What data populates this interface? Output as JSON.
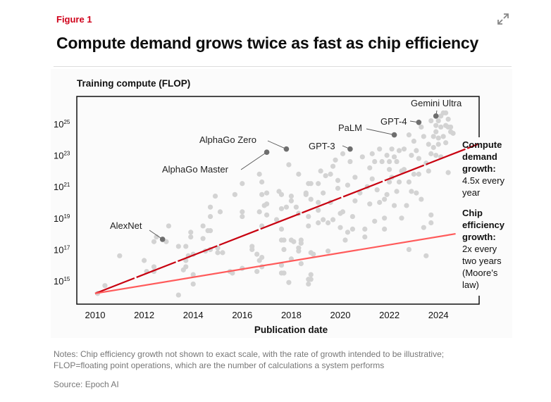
{
  "figure_label": "Figure 1",
  "title": "Compute demand grows twice as fast as chip efficiency",
  "icons": {
    "expand": "expand-icon"
  },
  "notes": [
    "Notes: Chip efficiency growth not shown to exact scale, with the rate of growth intended to be illustrative;",
    "FLOP=floating point operations, which are the number of calculations a system performs"
  ],
  "source": "Source: Epoch AI",
  "chart_data": {
    "type": "scatter",
    "title": "Compute demand grows twice as fast as chip efficiency",
    "ylabel": "Training compute (FLOP)",
    "xlabel": "Publication date",
    "xlim": [
      2009.6,
      2026.1
    ],
    "ylim_log10": [
      13.5,
      26.7
    ],
    "y_scale": "log",
    "x_ticks": [
      "2010",
      "2012",
      "2014",
      "2016",
      "2018",
      "2020",
      "2022",
      "2024"
    ],
    "x_tick_values": [
      2010,
      2012,
      2014,
      2016,
      2018,
      2020,
      2022,
      2024
    ],
    "y_ticks": [
      {
        "base": "10",
        "exp": "15",
        "value": 15
      },
      {
        "base": "10",
        "exp": "17",
        "value": 17
      },
      {
        "base": "10",
        "exp": "19",
        "value": 19
      },
      {
        "base": "10",
        "exp": "21",
        "value": 21
      },
      {
        "base": "10",
        "exp": "23",
        "value": 23
      },
      {
        "base": "10",
        "exp": "25",
        "value": 25
      }
    ],
    "colors": {
      "points": "#d3d3d3",
      "highlight": "#6e6e6e",
      "compute_line": "#c8000f",
      "chip_line": "#ff5a5a",
      "axis": "#111111"
    },
    "trend_lines": [
      {
        "name": "compute-demand",
        "label": [
          "Compute",
          "demand",
          "growth:"
        ],
        "sublabel": [
          "4.5x every",
          "year"
        ],
        "from": [
          2010,
          14.2
        ],
        "to": [
          2025.6,
          23.7
        ],
        "dashed": true
      },
      {
        "name": "chip-efficiency",
        "label": [
          "Chip",
          "efficiency",
          "growth:"
        ],
        "sublabel": [
          "2x every",
          "two years",
          "(Moore’s",
          "law)"
        ],
        "from": [
          2010,
          14.2
        ],
        "to": [
          2024.7,
          18.0
        ],
        "dashed": false
      }
    ],
    "highlighted": [
      {
        "name": "AlexNet",
        "x": 2012.75,
        "y": 17.65
      },
      {
        "name": "AlphaGo Master",
        "x": 2017.0,
        "y": 23.2
      },
      {
        "name": "AlphaGo Zero",
        "x": 2017.8,
        "y": 23.4
      },
      {
        "name": "GPT-3",
        "x": 2020.4,
        "y": 23.4
      },
      {
        "name": "PaLM",
        "x": 2022.2,
        "y": 24.3
      },
      {
        "name": "GPT-4",
        "x": 2023.2,
        "y": 25.1
      },
      {
        "name": "Gemini Ultra",
        "x": 2023.9,
        "y": 25.5
      }
    ],
    "points": [
      [
        2010.4,
        14.7
      ],
      [
        2010.1,
        14.2
      ],
      [
        2011.0,
        16.6
      ],
      [
        2012.0,
        16.3
      ],
      [
        2012.1,
        15.6
      ],
      [
        2012.4,
        15.9
      ],
      [
        2012.4,
        15.6
      ],
      [
        2012.4,
        17.5
      ],
      [
        2012.5,
        17.8
      ],
      [
        2012.9,
        17.5
      ],
      [
        2013.0,
        18.5
      ],
      [
        2013.4,
        17.2
      ],
      [
        2013.4,
        14.1
      ],
      [
        2013.6,
        15.7
      ],
      [
        2013.7,
        17.2
      ],
      [
        2013.7,
        16.3
      ],
      [
        2013.7,
        15.9
      ],
      [
        2013.8,
        16.6
      ],
      [
        2013.9,
        17.8
      ],
      [
        2013.9,
        18.1
      ],
      [
        2014.0,
        15.4
      ],
      [
        2014.0,
        14.8
      ],
      [
        2014.0,
        16.7
      ],
      [
        2014.4,
        18.5
      ],
      [
        2014.4,
        17.7
      ],
      [
        2014.5,
        16.9
      ],
      [
        2014.6,
        18.2
      ],
      [
        2014.7,
        18.2
      ],
      [
        2014.7,
        19.7
      ],
      [
        2014.7,
        19.1
      ],
      [
        2014.7,
        17.0
      ],
      [
        2014.9,
        20.4
      ],
      [
        2015.0,
        17.1
      ],
      [
        2015.0,
        16.8
      ],
      [
        2015.1,
        19.4
      ],
      [
        2015.2,
        16.8
      ],
      [
        2015.5,
        15.6
      ],
      [
        2015.6,
        15.5
      ],
      [
        2015.7,
        20.5
      ],
      [
        2016.0,
        19.4
      ],
      [
        2016.0,
        19.1
      ],
      [
        2016.0,
        15.8
      ],
      [
        2016.0,
        21.2
      ],
      [
        2016.4,
        17.2
      ],
      [
        2016.4,
        17.0
      ],
      [
        2016.6,
        16.7
      ],
      [
        2016.6,
        15.6
      ],
      [
        2016.7,
        19.4
      ],
      [
        2016.7,
        21.8
      ],
      [
        2016.8,
        20.5
      ],
      [
        2016.8,
        21.3
      ],
      [
        2016.8,
        18.5
      ],
      [
        2016.9,
        19.8
      ],
      [
        2017.0,
        20.6
      ],
      [
        2017.0,
        19.2
      ],
      [
        2017.0,
        19.9
      ],
      [
        2016.8,
        15.9
      ],
      [
        2016.8,
        16.5
      ],
      [
        2016.7,
        16.3
      ],
      [
        2017.4,
        18.9
      ],
      [
        2017.5,
        20.7
      ],
      [
        2017.6,
        20.5
      ],
      [
        2017.6,
        19.6
      ],
      [
        2017.6,
        18.3
      ],
      [
        2017.6,
        17.6
      ],
      [
        2017.6,
        16.0
      ],
      [
        2017.6,
        15.5
      ],
      [
        2017.7,
        15.5
      ],
      [
        2017.7,
        17.0
      ],
      [
        2017.7,
        17.6
      ],
      [
        2017.8,
        19.7
      ],
      [
        2017.9,
        22.4
      ],
      [
        2017.9,
        14.9
      ],
      [
        2018.0,
        17.6
      ],
      [
        2018.0,
        20.4
      ],
      [
        2018.0,
        20.1
      ],
      [
        2018.0,
        16.4
      ],
      [
        2018.1,
        17.5
      ],
      [
        2018.2,
        19.7
      ],
      [
        2018.3,
        21.8
      ],
      [
        2018.3,
        17.1
      ],
      [
        2018.3,
        16.9
      ],
      [
        2018.3,
        19.3
      ],
      [
        2018.4,
        17.6
      ],
      [
        2018.4,
        17.4
      ],
      [
        2018.4,
        16.1
      ],
      [
        2018.6,
        20.5
      ],
      [
        2018.7,
        19.1
      ],
      [
        2018.7,
        21.2
      ],
      [
        2018.7,
        18.5
      ],
      [
        2018.8,
        16.8
      ],
      [
        2018.7,
        14.8
      ],
      [
        2018.8,
        15.1
      ],
      [
        2019.1,
        21.2
      ],
      [
        2018.6,
        20.6
      ],
      [
        2018.8,
        21.2
      ],
      [
        2018.8,
        20.2
      ],
      [
        2018.9,
        16.7
      ],
      [
        2018.7,
        15.1
      ],
      [
        2018.8,
        15.4
      ],
      [
        2019.1,
        20.0
      ],
      [
        2019.1,
        19.5
      ],
      [
        2019.1,
        18.7
      ],
      [
        2019.3,
        20.6
      ],
      [
        2019.3,
        18.9
      ],
      [
        2019.4,
        21.7
      ],
      [
        2019.6,
        21.8
      ],
      [
        2019.5,
        18.7
      ],
      [
        2019.5,
        16.9
      ],
      [
        2019.7,
        22.3
      ],
      [
        2019.7,
        18.9
      ],
      [
        2019.8,
        22.7
      ],
      [
        2019.9,
        20.9
      ],
      [
        2020.0,
        18.4
      ],
      [
        2020.0,
        19.3
      ],
      [
        2020.1,
        23.1
      ],
      [
        2020.1,
        19.4
      ],
      [
        2020.2,
        17.6
      ],
      [
        2020.3,
        18.1
      ],
      [
        2020.5,
        19.1
      ],
      [
        2020.5,
        18.3
      ],
      [
        2020.4,
        22.6
      ],
      [
        2020.6,
        21.6
      ],
      [
        2021.2,
        22.2
      ],
      [
        2021.3,
        21.5
      ],
      [
        2020.8,
        20.6
      ],
      [
        2021.2,
        19.9
      ],
      [
        2021.0,
        17.8
      ],
      [
        2021.0,
        18.3
      ],
      [
        2021.4,
        22.6
      ],
      [
        2021.4,
        18.8
      ],
      [
        2021.8,
        20.2
      ],
      [
        2021.8,
        19.0
      ],
      [
        2022.0,
        22.6
      ],
      [
        2021.6,
        20.0
      ],
      [
        2021.6,
        23.4
      ],
      [
        2021.7,
        22.6
      ],
      [
        2021.8,
        18.3
      ],
      [
        2021.9,
        20.5
      ],
      [
        2022.0,
        21.3
      ],
      [
        2022.0,
        22.1
      ],
      [
        2022.1,
        23.4
      ],
      [
        2022.1,
        21.6
      ],
      [
        2022.2,
        19.8
      ],
      [
        2022.2,
        22.9
      ],
      [
        2022.3,
        20.7
      ],
      [
        2022.3,
        22.6
      ],
      [
        2022.4,
        23.3
      ],
      [
        2022.4,
        21.3
      ],
      [
        2022.5,
        19.0
      ],
      [
        2022.6,
        22.1
      ],
      [
        2022.6,
        23.4
      ],
      [
        2022.7,
        19.8
      ],
      [
        2022.8,
        21.3
      ],
      [
        2022.8,
        24.3
      ],
      [
        2022.8,
        17.0
      ],
      [
        2022.9,
        20.7
      ],
      [
        2023.0,
        21.8
      ],
      [
        2023.1,
        23.3
      ],
      [
        2023.1,
        20.6
      ],
      [
        2023.2,
        21.8
      ],
      [
        2023.3,
        20.2
      ],
      [
        2023.3,
        24.8
      ],
      [
        2023.4,
        24.2
      ],
      [
        2023.4,
        18.4
      ],
      [
        2023.5,
        22.5
      ],
      [
        2023.5,
        16.6
      ],
      [
        2023.6,
        23.7
      ],
      [
        2023.7,
        18.7
      ],
      [
        2023.7,
        19.2
      ],
      [
        2023.7,
        23.1
      ],
      [
        2023.7,
        25.2
      ],
      [
        2023.8,
        24.2
      ],
      [
        2023.8,
        23.5
      ],
      [
        2023.9,
        24.9
      ],
      [
        2023.9,
        24.5
      ],
      [
        2024.0,
        24.1
      ],
      [
        2024.0,
        25.2
      ],
      [
        2024.1,
        24.8
      ],
      [
        2024.1,
        25.5
      ],
      [
        2024.1,
        22.9
      ],
      [
        2024.2,
        24.2
      ],
      [
        2024.2,
        25.7
      ],
      [
        2024.3,
        24.9
      ],
      [
        2024.3,
        25.7
      ],
      [
        2024.4,
        24.8
      ],
      [
        2024.4,
        25.3
      ],
      [
        2024.4,
        21.9
      ],
      [
        2024.5,
        24.5
      ],
      [
        2024.5,
        24.8
      ],
      [
        2024.6,
        24.4
      ],
      [
        2019.2,
        22.0
      ],
      [
        2019.9,
        21.4
      ],
      [
        2020.6,
        20.1
      ],
      [
        2020.9,
        22.9
      ],
      [
        2021.1,
        21.0
      ],
      [
        2021.5,
        20.8
      ],
      [
        2021.9,
        23.0
      ],
      [
        2022.5,
        22.0
      ],
      [
        2023.0,
        23.9
      ],
      [
        2023.2,
        22.8
      ],
      [
        2023.6,
        22.0
      ],
      [
        2023.9,
        23.0
      ],
      [
        2024.3,
        23.8
      ],
      [
        2020.3,
        21.1
      ],
      [
        2019.6,
        20.0
      ],
      [
        2021.3,
        23.1
      ],
      [
        2022.9,
        23.0
      ],
      [
        2024.0,
        23.7
      ]
    ]
  }
}
